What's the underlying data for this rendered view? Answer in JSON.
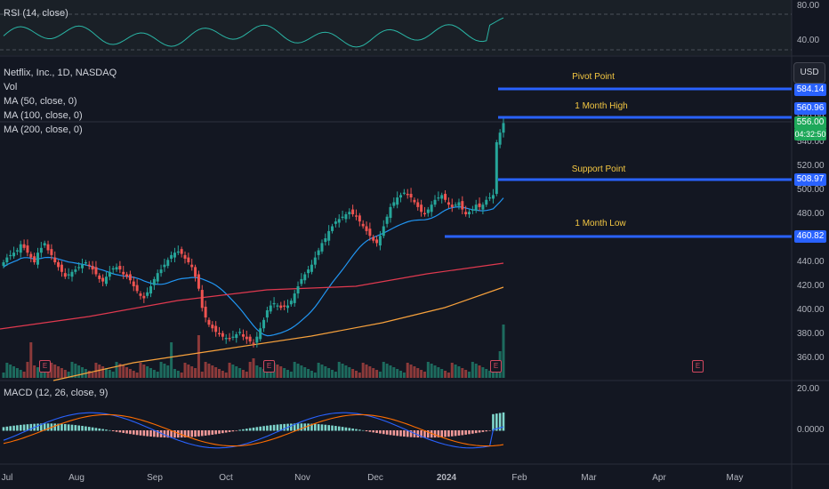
{
  "chart_data": {
    "type": "candlestick",
    "symbol_title": "Netflix, Inc., 1D, NASDAQ",
    "currency": "USD",
    "indicators": {
      "volume_label": "Vol",
      "ma50_label": "MA (50, close, 0)",
      "ma100_label": "MA (100, close, 0)",
      "ma200_label": "MA (200, close, 0)",
      "rsi_label": "RSI (14, close)",
      "macd_label": "MACD (12, 26, close, 9)"
    },
    "price_axis": [
      "580.00",
      "560.00",
      "540.00",
      "520.00",
      "500.00",
      "480.00",
      "460.00",
      "440.00",
      "420.00",
      "400.00",
      "380.00",
      "360.00"
    ],
    "rsi_axis": [
      "80.00",
      "40.00"
    ],
    "macd_axis": [
      "20.00",
      "0.0000"
    ],
    "months": [
      "Jul",
      "Aug",
      "Sep",
      "Oct",
      "Nov",
      "Dec",
      "2024",
      "Feb",
      "Mar",
      "Apr",
      "May"
    ],
    "levels": [
      {
        "name": "Pivot Point",
        "value": "584.14"
      },
      {
        "name": "1 Month High",
        "value": "560.96"
      },
      {
        "name": "Support Point",
        "value": "508.97"
      },
      {
        "name": "1 Month Low",
        "value": "460.82"
      }
    ],
    "last_price": "556.00",
    "countdown": "04:32:50",
    "earnings_marker": "E",
    "close_series": [
      440,
      444,
      446,
      448,
      450,
      455,
      452,
      448,
      444,
      440,
      448,
      452,
      456,
      450,
      446,
      440,
      436,
      432,
      428,
      430,
      432,
      434,
      436,
      438,
      440,
      437,
      434,
      430,
      426,
      424,
      428,
      432,
      435,
      436,
      434,
      430,
      428,
      425,
      420,
      416,
      412,
      410,
      415,
      420,
      426,
      431,
      434,
      438,
      442,
      446,
      448,
      449,
      447,
      443,
      440,
      436,
      428,
      418,
      402,
      394,
      388,
      385,
      382,
      380,
      378,
      377,
      376,
      378,
      380,
      382,
      378,
      376,
      374,
      372,
      378,
      385,
      392,
      400,
      404,
      406,
      404,
      402,
      403,
      404,
      408,
      414,
      420,
      426,
      430,
      434,
      438,
      444,
      450,
      456,
      460,
      466,
      470,
      474,
      476,
      478,
      480,
      482,
      480,
      478,
      474,
      470,
      466,
      462,
      458,
      456,
      462,
      470,
      478,
      486,
      490,
      494,
      496,
      498,
      496,
      494,
      490,
      486,
      482,
      480,
      484,
      488,
      492,
      494,
      496,
      492,
      488,
      486,
      488,
      490,
      484,
      480,
      482,
      484,
      488,
      486,
      488,
      492,
      494,
      496,
      540,
      548,
      556
    ]
  }
}
